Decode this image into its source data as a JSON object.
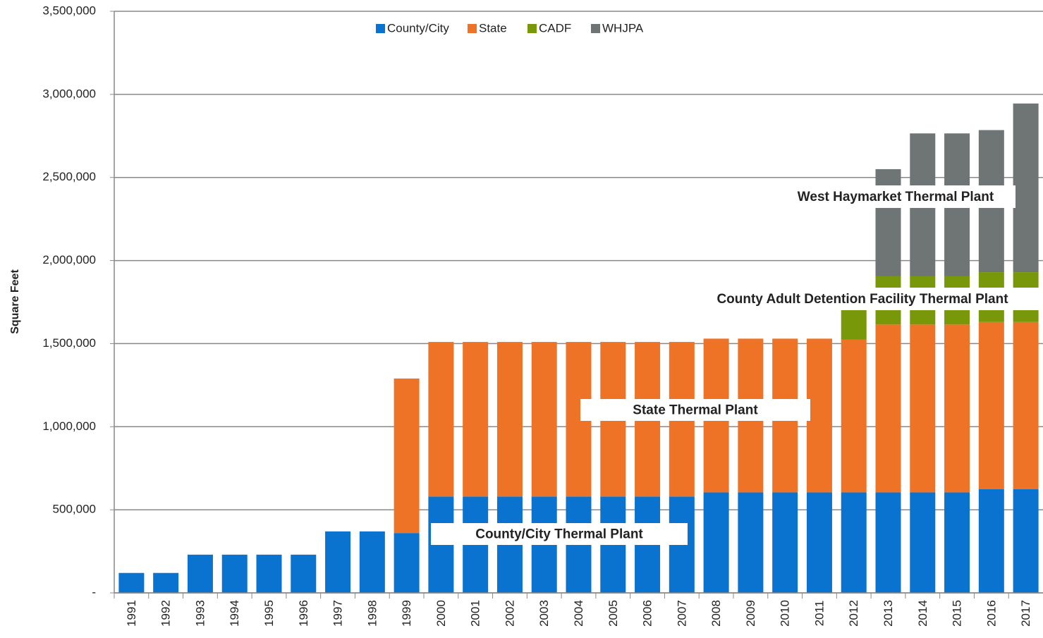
{
  "chart_data": {
    "type": "stacked_bar",
    "y_label": "Square Feet",
    "categories": [
      "1991",
      "1992",
      "1993",
      "1994",
      "1995",
      "1996",
      "1997",
      "1998",
      "1999",
      "2000",
      "2001",
      "2002",
      "2003",
      "2004",
      "2005",
      "2006",
      "2007",
      "2008",
      "2009",
      "2010",
      "2011",
      "2012",
      "2013",
      "2014",
      "2015",
      "2016",
      "2017"
    ],
    "series": [
      {
        "name": "County/City",
        "color": "#0a72cf",
        "values": [
          120000,
          120000,
          230000,
          230000,
          230000,
          230000,
          370000,
          370000,
          360000,
          580000,
          580000,
          580000,
          580000,
          580000,
          580000,
          580000,
          580000,
          605000,
          605000,
          605000,
          605000,
          605000,
          605000,
          605000,
          605000,
          625000,
          625000
        ]
      },
      {
        "name": "State",
        "color": "#ee7326",
        "values": [
          null,
          null,
          null,
          null,
          null,
          null,
          null,
          null,
          930000,
          930000,
          930000,
          930000,
          930000,
          930000,
          930000,
          930000,
          930000,
          925000,
          925000,
          925000,
          925000,
          920000,
          1010000,
          1010000,
          1010000,
          1005000,
          1005000
        ]
      },
      {
        "name": "CADF",
        "color": "#78980a",
        "values": [
          null,
          null,
          null,
          null,
          null,
          null,
          null,
          null,
          null,
          null,
          null,
          null,
          null,
          null,
          null,
          null,
          null,
          null,
          null,
          null,
          null,
          180000,
          290000,
          290000,
          290000,
          300000,
          300000
        ]
      },
      {
        "name": "WHJPA",
        "color": "#6f7475",
        "values": [
          null,
          null,
          null,
          null,
          null,
          null,
          null,
          null,
          null,
          null,
          null,
          null,
          null,
          null,
          null,
          null,
          null,
          null,
          null,
          null,
          null,
          null,
          645000,
          860000,
          860000,
          855000,
          1015000
        ]
      }
    ],
    "ylim": [
      0,
      3500000
    ],
    "yticks": [
      {
        "value": 0,
        "label": "-"
      },
      {
        "value": 500000,
        "label": "500,000"
      },
      {
        "value": 1000000,
        "label": "1,000,000"
      },
      {
        "value": 1500000,
        "label": "1,500,000"
      },
      {
        "value": 2000000,
        "label": "2,000,000"
      },
      {
        "value": 2500000,
        "label": "2,500,000"
      },
      {
        "value": 3000000,
        "label": "3,000,000"
      },
      {
        "value": 3500000,
        "label": "3,500,000"
      }
    ],
    "grid": true,
    "legend": "top",
    "annotations": [
      "County/City Thermal Plant",
      "State Thermal Plant",
      "County Adult Detention Facility Thermal Plant",
      "West Haymarket Thermal Plant"
    ]
  }
}
